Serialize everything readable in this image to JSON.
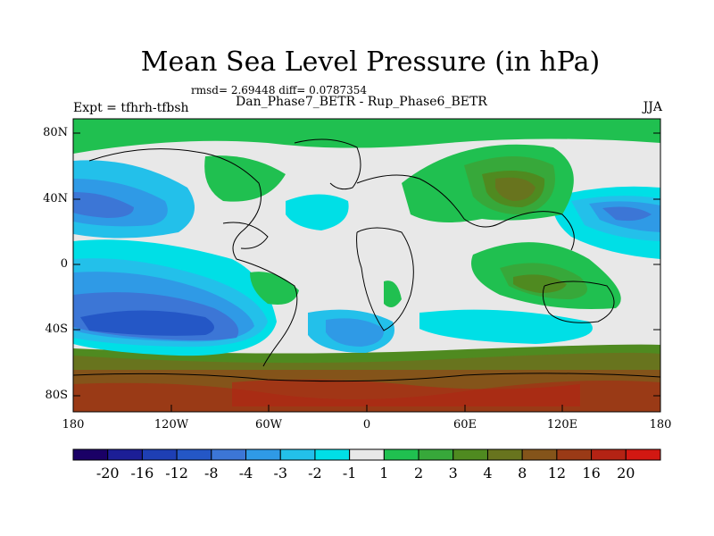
{
  "title": "Mean Sea Level Pressure (in hPa)",
  "stats": "rmsd= 2.69448 diff= 0.0787354",
  "subtitle": "Dan_Phase7_BETR - Rup_Phase6_BETR",
  "left_label": "Expt = tfhrh-tfbsh",
  "right_label": "JJA",
  "lat_ticks": [
    "80N",
    "40N",
    "0",
    "40S",
    "80S"
  ],
  "lon_ticks": [
    "180",
    "120W",
    "60W",
    "0",
    "60E",
    "120E",
    "180"
  ],
  "colorbar": {
    "colors": [
      "#1a0066",
      "#1c1e96",
      "#1e3fb4",
      "#2457c6",
      "#3c76d6",
      "#2f9ae6",
      "#23c0ea",
      "#00dfe6",
      "#e8e8e8",
      "#20c050",
      "#37a83a",
      "#4f8a20",
      "#68741e",
      "#84541a",
      "#9a3a16",
      "#b42314",
      "#d21812"
    ],
    "labels": [
      "-20",
      "-16",
      "-12",
      "-8",
      "-4",
      "-3",
      "-2",
      "-1",
      "1",
      "2",
      "3",
      "4",
      "8",
      "12",
      "16",
      "20"
    ]
  }
}
